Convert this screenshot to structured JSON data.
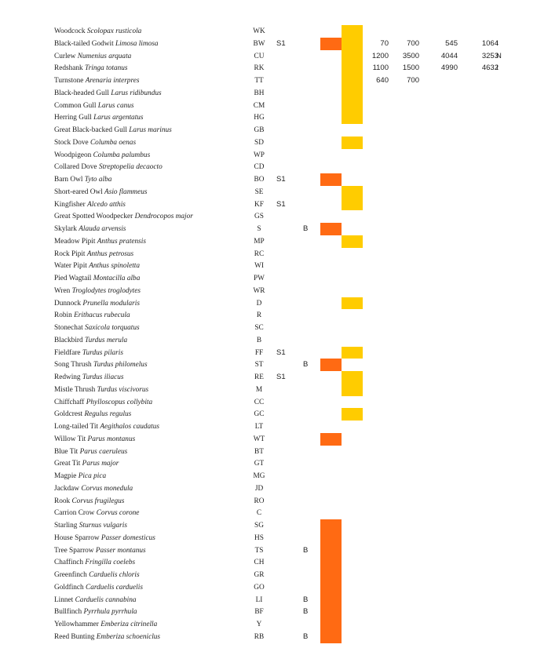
{
  "colors": {
    "orange": "#ff6a13",
    "amber": "#ffcc00"
  },
  "rows": [
    {
      "common": "Woodcock",
      "latin": "Scolopax rusticola",
      "code": "WK",
      "s1": "",
      "b": "",
      "counts": [],
      "flag": ""
    },
    {
      "common": "Black-tailed Godwit",
      "latin": "Limosa limosa",
      "code": "BW",
      "s1": "S1",
      "b": "",
      "counts": [
        "70",
        "700",
        "545",
        "1064"
      ],
      "flag": "I"
    },
    {
      "common": "Curlew",
      "latin": "Numenius arquata",
      "code": "CU",
      "s1": "",
      "b": "",
      "counts": [
        "1200",
        "3500",
        "4044",
        "3253"
      ],
      "flag": "N"
    },
    {
      "common": "Redshank",
      "latin": "Tringa totanus",
      "code": "RK",
      "s1": "",
      "b": "",
      "counts": [
        "1100",
        "1500",
        "4990",
        "4632"
      ],
      "flag": "I"
    },
    {
      "common": "Turnstone",
      "latin": "Arenaria interpres",
      "code": "TT",
      "s1": "",
      "b": "",
      "counts": [
        "640",
        "700"
      ],
      "flag": ""
    },
    {
      "common": "Black-headed Gull",
      "latin": "Larus ridibundus",
      "code": "BH",
      "s1": "",
      "b": "",
      "counts": [],
      "flag": ""
    },
    {
      "common": "Common Gull",
      "latin": "Larus canus",
      "code": "CM",
      "s1": "",
      "b": "",
      "counts": [],
      "flag": ""
    },
    {
      "common": "Herring Gull",
      "latin": "Larus argentatus",
      "code": "HG",
      "s1": "",
      "b": "",
      "counts": [],
      "flag": ""
    },
    {
      "common": "Great Black-backed Gull",
      "latin": "Larus marinus",
      "code": "GB",
      "s1": "",
      "b": "",
      "counts": [],
      "flag": ""
    },
    {
      "common": "Stock Dove",
      "latin": "Columba oenas",
      "code": "SD",
      "s1": "",
      "b": "",
      "counts": [],
      "flag": ""
    },
    {
      "common": "Woodpigeon",
      "latin": "Columba palumbus",
      "code": "WP",
      "s1": "",
      "b": "",
      "counts": [],
      "flag": ""
    },
    {
      "common": "Collared Dove",
      "latin": "Streptopelia decaocto",
      "code": "CD",
      "s1": "",
      "b": "",
      "counts": [],
      "flag": ""
    },
    {
      "common": "Barn Owl",
      "latin": "Tyto alba",
      "code": "BO",
      "s1": "S1",
      "b": "",
      "counts": [],
      "flag": ""
    },
    {
      "common": "Short-eared Owl",
      "latin": "Asio flammeus",
      "code": "SE",
      "s1": "",
      "b": "",
      "counts": [],
      "flag": ""
    },
    {
      "common": "Kingfisher",
      "latin": "Alcedo atthis",
      "code": "KF",
      "s1": "S1",
      "b": "",
      "counts": [],
      "flag": ""
    },
    {
      "common": "Great Spotted Woodpecker",
      "latin": "Dendrocopos major",
      "code": "GS",
      "s1": "",
      "b": "",
      "counts": [],
      "flag": ""
    },
    {
      "common": "Skylark",
      "latin": "Alauda arvensis",
      "code": "S",
      "s1": "",
      "b": "B",
      "counts": [],
      "flag": ""
    },
    {
      "common": "Meadow Pipit",
      "latin": "Anthus pratensis",
      "code": "MP",
      "s1": "",
      "b": "",
      "counts": [],
      "flag": ""
    },
    {
      "common": "Rock Pipit",
      "latin": "Anthus petrosus",
      "code": "RC",
      "s1": "",
      "b": "",
      "counts": [],
      "flag": ""
    },
    {
      "common": "Water Pipit",
      "latin": "Anthus spinoletta",
      "code": "WI",
      "s1": "",
      "b": "",
      "counts": [],
      "flag": ""
    },
    {
      "common": "Pied Wagtail",
      "latin": "Montacilla alba",
      "code": "PW",
      "s1": "",
      "b": "",
      "counts": [],
      "flag": ""
    },
    {
      "common": "Wren",
      "latin": "Troglodytes troglodytes",
      "code": "WR",
      "s1": "",
      "b": "",
      "counts": [],
      "flag": ""
    },
    {
      "common": "Dunnock",
      "latin": "Prunella modularis",
      "code": "D",
      "s1": "",
      "b": "",
      "counts": [],
      "flag": ""
    },
    {
      "common": "Robin",
      "latin": "Erithacus rubecula",
      "code": "R",
      "s1": "",
      "b": "",
      "counts": [],
      "flag": ""
    },
    {
      "common": "Stonechat",
      "latin": "Saxicola torquatus",
      "code": "SC",
      "s1": "",
      "b": "",
      "counts": [],
      "flag": ""
    },
    {
      "common": "Blackbird",
      "latin": "Turdus merula",
      "code": "B",
      "s1": "",
      "b": "",
      "counts": [],
      "flag": ""
    },
    {
      "common": "Fieldfare",
      "latin": "Turdus pilaris",
      "code": "FF",
      "s1": "S1",
      "b": "",
      "counts": [],
      "flag": ""
    },
    {
      "common": "Song Thrush",
      "latin": "Turdus philomelus",
      "code": "ST",
      "s1": "",
      "b": "B",
      "counts": [],
      "flag": ""
    },
    {
      "common": "Redwing",
      "latin": "Turdus iliacus",
      "code": "RE",
      "s1": "S1",
      "b": "",
      "counts": [],
      "flag": ""
    },
    {
      "common": "Mistle Thrush",
      "latin": "Turdus viscivorus",
      "code": "M",
      "s1": "",
      "b": "",
      "counts": [],
      "flag": ""
    },
    {
      "common": "Chiffchaff",
      "latin": "Phylloscopus collybita",
      "code": "CC",
      "s1": "",
      "b": "",
      "counts": [],
      "flag": ""
    },
    {
      "common": "Goldcrest",
      "latin": "Regulus regulus",
      "code": "GC",
      "s1": "",
      "b": "",
      "counts": [],
      "flag": ""
    },
    {
      "common": "Long-tailed Tit",
      "latin": "Aegithalos caudatus",
      "code": "LT",
      "s1": "",
      "b": "",
      "counts": [],
      "flag": ""
    },
    {
      "common": "Willow Tit",
      "latin": "Parus montanus",
      "code": "WT",
      "s1": "",
      "b": "",
      "counts": [],
      "flag": ""
    },
    {
      "common": "Blue Tit",
      "latin": "Parus caeruleus",
      "code": "BT",
      "s1": "",
      "b": "",
      "counts": [],
      "flag": ""
    },
    {
      "common": "Great Tit",
      "latin": "Parus major",
      "code": "GT",
      "s1": "",
      "b": "",
      "counts": [],
      "flag": ""
    },
    {
      "common": "Magpie",
      "latin": "Pica pica",
      "code": "MG",
      "s1": "",
      "b": "",
      "counts": [],
      "flag": ""
    },
    {
      "common": "Jackdaw",
      "latin": "Corvus monedula",
      "code": "JD",
      "s1": "",
      "b": "",
      "counts": [],
      "flag": ""
    },
    {
      "common": "Rook",
      "latin": "Corvus frugilegus",
      "code": "RO",
      "s1": "",
      "b": "",
      "counts": [],
      "flag": ""
    },
    {
      "common": "Carrion Crow",
      "latin": "Corvus corone",
      "code": "C",
      "s1": "",
      "b": "",
      "counts": [],
      "flag": ""
    },
    {
      "common": "Starling",
      "latin": "Sturnus vulgaris",
      "code": "SG",
      "s1": "",
      "b": "",
      "counts": [],
      "flag": ""
    },
    {
      "common": "House Sparrow",
      "latin": "Passer domesticus",
      "code": "HS",
      "s1": "",
      "b": "",
      "counts": [],
      "flag": ""
    },
    {
      "common": "Tree Sparrow",
      "latin": "Passer montanus",
      "code": "TS",
      "s1": "",
      "b": "B",
      "counts": [],
      "flag": ""
    },
    {
      "common": "Chaffinch",
      "latin": "Fringilla coelebs",
      "code": "CH",
      "s1": "",
      "b": "",
      "counts": [],
      "flag": ""
    },
    {
      "common": "Greenfinch",
      "latin": "Carduelis chloris",
      "code": "GR",
      "s1": "",
      "b": "",
      "counts": [],
      "flag": ""
    },
    {
      "common": "Goldfinch",
      "latin": "Carduelis carduelis",
      "code": "GO",
      "s1": "",
      "b": "",
      "counts": [],
      "flag": ""
    },
    {
      "common": "Linnet",
      "latin": "Carduelis cannabina",
      "code": "LI",
      "s1": "",
      "b": "B",
      "counts": [],
      "flag": ""
    },
    {
      "common": "Bullfinch",
      "latin": "Pyrrhula pyrrhula",
      "code": "BF",
      "s1": "",
      "b": "B",
      "counts": [],
      "flag": ""
    },
    {
      "common": "Yellowhammer",
      "latin": "Emberiza citrinella",
      "code": "Y",
      "s1": "",
      "b": "",
      "counts": [],
      "flag": ""
    },
    {
      "common": "Reed Bunting",
      "latin": "Emberiza schoeniclus",
      "code": "RB",
      "s1": "",
      "b": "B",
      "counts": [],
      "flag": ""
    }
  ],
  "red_blocks": [
    {
      "color": "orange",
      "from_row": 1,
      "to_row": 1
    },
    {
      "color": "orange",
      "from_row": 12,
      "to_row": 12
    },
    {
      "color": "orange",
      "from_row": 16,
      "to_row": 16
    },
    {
      "color": "orange",
      "from_row": 27,
      "to_row": 27
    },
    {
      "color": "orange",
      "from_row": 33,
      "to_row": 33
    },
    {
      "color": "orange",
      "from_row": 40,
      "to_row": 46
    },
    {
      "color": "orange",
      "from_row": 47,
      "to_row": 49
    }
  ],
  "amber_blocks": [
    {
      "color": "amber",
      "from_row": 0,
      "to_row": 7
    },
    {
      "color": "amber",
      "from_row": 9,
      "to_row": 9
    },
    {
      "color": "amber",
      "from_row": 13,
      "to_row": 14
    },
    {
      "color": "amber",
      "from_row": 17,
      "to_row": 17
    },
    {
      "color": "amber",
      "from_row": 22,
      "to_row": 22
    },
    {
      "color": "amber",
      "from_row": 26,
      "to_row": 26
    },
    {
      "color": "amber",
      "from_row": 28,
      "to_row": 29
    },
    {
      "color": "amber",
      "from_row": 31,
      "to_row": 31
    }
  ]
}
